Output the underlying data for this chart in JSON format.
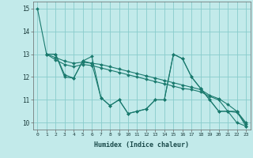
{
  "xlabel": "Humidex (Indice chaleur)",
  "bg_color": "#c2eaea",
  "grid_color": "#88cccc",
  "line_color": "#1a7a6e",
  "xlim": [
    -0.5,
    23.5
  ],
  "ylim": [
    9.7,
    15.3
  ],
  "yticks": [
    10,
    11,
    12,
    13,
    14,
    15
  ],
  "xticks": [
    0,
    1,
    2,
    3,
    4,
    5,
    6,
    7,
    8,
    9,
    10,
    11,
    12,
    13,
    14,
    15,
    16,
    17,
    18,
    19,
    20,
    21,
    22,
    23
  ],
  "series": [
    {
      "x": [
        0,
        1,
        2,
        3,
        4,
        5,
        6,
        7,
        8,
        9,
        10,
        11,
        12,
        13,
        14,
        15,
        16,
        17,
        18,
        19,
        20,
        21,
        22,
        23
      ],
      "y": [
        15.0,
        13.0,
        13.0,
        12.1,
        11.95,
        12.7,
        12.9,
        11.1,
        10.75,
        11.0,
        10.4,
        10.5,
        10.6,
        11.0,
        11.0,
        13.0,
        12.8,
        12.0,
        11.5,
        11.0,
        10.5,
        10.5,
        10.0,
        9.85
      ]
    },
    {
      "x": [
        1,
        2,
        3,
        4,
        5,
        6,
        7,
        8,
        9,
        10,
        11,
        12,
        13,
        14,
        15,
        16,
        17,
        18,
        19,
        20,
        21,
        22,
        23
      ],
      "y": [
        13.0,
        12.85,
        12.7,
        12.6,
        12.65,
        12.6,
        12.55,
        12.45,
        12.35,
        12.25,
        12.15,
        12.05,
        11.95,
        11.85,
        11.75,
        11.65,
        11.55,
        11.45,
        11.2,
        11.05,
        10.8,
        10.5,
        10.0
      ]
    },
    {
      "x": [
        1,
        2,
        3,
        4,
        5,
        6,
        7,
        8,
        9,
        10,
        11,
        12,
        13,
        14,
        15,
        16,
        17,
        18,
        19,
        20,
        21,
        22,
        23
      ],
      "y": [
        13.0,
        13.0,
        12.0,
        11.95,
        12.7,
        12.6,
        11.1,
        10.75,
        11.0,
        10.4,
        10.5,
        10.6,
        11.0,
        11.0,
        13.0,
        12.8,
        12.0,
        11.5,
        11.0,
        10.5,
        10.5,
        10.5,
        9.85
      ]
    },
    {
      "x": [
        1,
        2,
        3,
        4,
        5,
        6,
        7,
        8,
        9,
        10,
        11,
        12,
        13,
        14,
        15,
        16,
        17,
        18,
        19,
        20,
        21,
        22,
        23
      ],
      "y": [
        13.0,
        12.75,
        12.55,
        12.45,
        12.55,
        12.5,
        12.4,
        12.3,
        12.2,
        12.1,
        12.0,
        11.9,
        11.8,
        11.7,
        11.6,
        11.5,
        11.45,
        11.35,
        11.15,
        11.0,
        10.5,
        10.45,
        9.95
      ]
    }
  ]
}
